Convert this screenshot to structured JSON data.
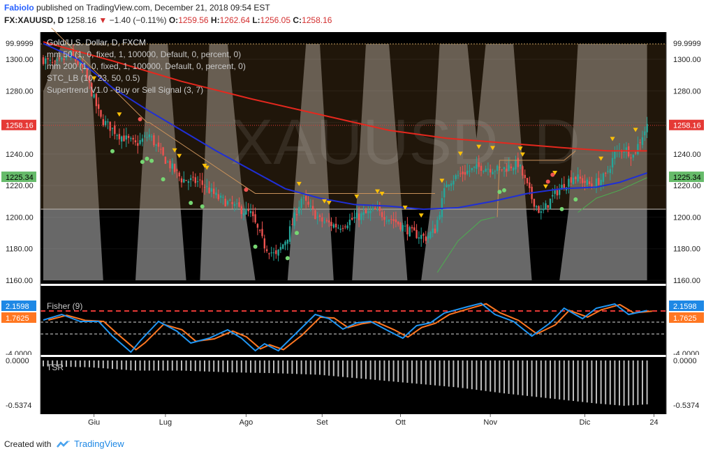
{
  "header": {
    "author": "FabioIo",
    "published_text": "published on TradingView.com, December 21, 2018 09:54 EST",
    "symbol": "FX:XAUUSD, D",
    "last": "1258.16",
    "change": "−1.40 (−0.11%)",
    "o_label": "O:",
    "o_value": "1259.56",
    "h_label": "H:",
    "h_value": "1262.64",
    "l_label": "L:",
    "l_value": "1256.05",
    "c_label": "C:",
    "c_value": "1258.16"
  },
  "legend": {
    "title": "Gold/U.S. Dollar, D, FXCM",
    "ma50": "mm 50 (1, 0, fixed, 1, 100000, Default, 0, percent, 0)",
    "ma200": "mm 200 (1, 0, fixed, 1, 100000, Default, 0, percent, 0)",
    "stc": "STC_LB (10, 23, 50, 0.5)",
    "supertrend": "Supertrend V1.0 - Buy or Sell Signal (3, 7)"
  },
  "watermark": "XAUUSD, D",
  "colors": {
    "background": "#000000",
    "up_candle": "#26a69a",
    "down_candle": "#ef5350",
    "ma50": "#1f2fd6",
    "ma200": "#e5281e",
    "stc_fill": "#7a7a7a",
    "supertrend_up": "#4caf50",
    "supertrend_down": "#c8915a",
    "fisher": "#2196f3",
    "fisher_trigger": "#ff7722",
    "tsr_bars": "#bdbdbd",
    "last_price_badge": "#e53935",
    "ma50_badge": "#66bb6a"
  },
  "chart_data": [
    {
      "type": "candlestick",
      "title": "Gold/U.S. Dollar, D, FXCM",
      "x_ticks": [
        "Giu",
        "Lug",
        "Ago",
        "Set",
        "Ott",
        "Nov",
        "Dic",
        "24"
      ],
      "y_ticks": [
        1300.0,
        1280.0,
        1260.0,
        1240.0,
        1220.0,
        1200.0,
        1180.0,
        1160.0
      ],
      "ylim": [
        1155,
        1310
      ],
      "last_price": 1258.16,
      "ma50_last": 1225.34,
      "stc_top_label": "99.9999",
      "close_path": [
        [
          0,
          1300
        ],
        [
          5,
          1296
        ],
        [
          12,
          1303
        ],
        [
          18,
          1292
        ],
        [
          25,
          1262
        ],
        [
          33,
          1252
        ],
        [
          40,
          1246
        ],
        [
          46,
          1252
        ],
        [
          52,
          1238
        ],
        [
          60,
          1224
        ],
        [
          68,
          1222
        ],
        [
          76,
          1212
        ],
        [
          84,
          1206
        ],
        [
          90,
          1202
        ],
        [
          96,
          1182
        ],
        [
          101,
          1175
        ],
        [
          106,
          1188
        ],
        [
          112,
          1212
        ],
        [
          120,
          1198
        ],
        [
          128,
          1194
        ],
        [
          136,
          1200
        ],
        [
          144,
          1204
        ],
        [
          152,
          1198
        ],
        [
          160,
          1190
        ],
        [
          166,
          1187
        ],
        [
          170,
          1192
        ],
        [
          175,
          1222
        ],
        [
          182,
          1228
        ],
        [
          190,
          1232
        ],
        [
          198,
          1230
        ],
        [
          206,
          1234
        ],
        [
          212,
          1212
        ],
        [
          216,
          1202
        ],
        [
          222,
          1215
        ],
        [
          230,
          1226
        ],
        [
          238,
          1220
        ],
        [
          244,
          1226
        ],
        [
          248,
          1240
        ],
        [
          252,
          1244
        ],
        [
          256,
          1239
        ],
        [
          260,
          1252
        ],
        [
          262,
          1258
        ]
      ],
      "ma50_path": [
        [
          0,
          1310
        ],
        [
          15,
          1300
        ],
        [
          30,
          1282
        ],
        [
          45,
          1268
        ],
        [
          60,
          1255
        ],
        [
          75,
          1242
        ],
        [
          90,
          1230
        ],
        [
          105,
          1218
        ],
        [
          120,
          1212
        ],
        [
          135,
          1208
        ],
        [
          150,
          1207
        ],
        [
          165,
          1205
        ],
        [
          180,
          1206
        ],
        [
          195,
          1210
        ],
        [
          210,
          1215
        ],
        [
          225,
          1218
        ],
        [
          240,
          1219
        ],
        [
          250,
          1222
        ],
        [
          262,
          1228
        ]
      ],
      "ma200_path": [
        [
          0,
          1311
        ],
        [
          30,
          1299
        ],
        [
          60,
          1286
        ],
        [
          90,
          1275
        ],
        [
          120,
          1265
        ],
        [
          150,
          1255
        ],
        [
          175,
          1250
        ],
        [
          200,
          1247
        ],
        [
          225,
          1244
        ],
        [
          245,
          1242
        ],
        [
          262,
          1242
        ]
      ],
      "supertrend_path": [
        [
          0,
          1325
        ],
        [
          45,
          1260
        ],
        [
          46,
          1260
        ],
        [
          92,
          1215
        ],
        [
          93,
          1215
        ],
        [
          170,
          1215
        ],
        [
          171,
          1165
        ],
        [
          180,
          1185
        ],
        [
          190,
          1198
        ],
        [
          196,
          1200
        ],
        [
          197,
          1200
        ],
        [
          198,
          1236
        ],
        [
          215,
          1236
        ],
        [
          216,
          1236
        ],
        [
          226,
          1236
        ],
        [
          231,
          1242
        ],
        [
          232,
          1203
        ],
        [
          240,
          1212
        ],
        [
          250,
          1217
        ],
        [
          262,
          1225
        ]
      ],
      "stc_path": [
        [
          0,
          80
        ],
        [
          8,
          100
        ],
        [
          20,
          100
        ],
        [
          26,
          0
        ],
        [
          35,
          0
        ],
        [
          40,
          0
        ],
        [
          46,
          100
        ],
        [
          54,
          100
        ],
        [
          62,
          0
        ],
        [
          68,
          0
        ],
        [
          72,
          100
        ],
        [
          80,
          100
        ],
        [
          86,
          40
        ],
        [
          92,
          0
        ],
        [
          100,
          0
        ],
        [
          106,
          0
        ],
        [
          114,
          100
        ],
        [
          120,
          100
        ],
        [
          126,
          0
        ],
        [
          134,
          0
        ],
        [
          140,
          100
        ],
        [
          150,
          100
        ],
        [
          158,
          0
        ],
        [
          164,
          0
        ],
        [
          168,
          30
        ],
        [
          172,
          100
        ],
        [
          184,
          100
        ],
        [
          188,
          60
        ],
        [
          192,
          100
        ],
        [
          204,
          100
        ],
        [
          212,
          0
        ],
        [
          218,
          0
        ],
        [
          224,
          0
        ],
        [
          228,
          30
        ],
        [
          232,
          100
        ],
        [
          240,
          100
        ],
        [
          250,
          100
        ],
        [
          262,
          100
        ]
      ]
    },
    {
      "type": "line",
      "title": "Fisher (9)",
      "y_ticks": [
        -4.0
      ],
      "last_fisher": 2.1598,
      "last_trigger": 1.7625,
      "top_label": "2.1598",
      "trigger_label": "1.7625",
      "bottom_label": "-4.0000",
      "path": [
        [
          0,
          0.8
        ],
        [
          8,
          1.6
        ],
        [
          16,
          0.6
        ],
        [
          24,
          0.6
        ],
        [
          30,
          -1.5
        ],
        [
          38,
          -3.8
        ],
        [
          42,
          -2.2
        ],
        [
          50,
          0.6
        ],
        [
          58,
          -0.8
        ],
        [
          64,
          -2.5
        ],
        [
          72,
          -1.8
        ],
        [
          80,
          -0.6
        ],
        [
          86,
          -1.8
        ],
        [
          92,
          -3.6
        ],
        [
          96,
          -2.6
        ],
        [
          102,
          -3.6
        ],
        [
          110,
          -1.0
        ],
        [
          118,
          1.6
        ],
        [
          124,
          1.0
        ],
        [
          130,
          -0.5
        ],
        [
          136,
          0.4
        ],
        [
          142,
          0.6
        ],
        [
          150,
          -0.8
        ],
        [
          156,
          -1.8
        ],
        [
          162,
          0.0
        ],
        [
          168,
          0.4
        ],
        [
          174,
          1.8
        ],
        [
          184,
          2.7
        ],
        [
          190,
          3.2
        ],
        [
          196,
          1.6
        ],
        [
          204,
          0.6
        ],
        [
          212,
          -1.5
        ],
        [
          220,
          0.4
        ],
        [
          226,
          2.5
        ],
        [
          234,
          1.0
        ],
        [
          240,
          2.5
        ],
        [
          248,
          3.1
        ],
        [
          254,
          1.6
        ],
        [
          262,
          2.16
        ]
      ]
    },
    {
      "type": "bar",
      "title": "TSR",
      "top_label": "0.0000",
      "bottom_label": "-0.5374",
      "min": -0.5374,
      "path": [
        [
          0,
          -0.07
        ],
        [
          20,
          -0.08
        ],
        [
          40,
          -0.12
        ],
        [
          60,
          -0.12
        ],
        [
          80,
          -0.14
        ],
        [
          100,
          -0.15
        ],
        [
          120,
          -0.17
        ],
        [
          140,
          -0.22
        ],
        [
          160,
          -0.27
        ],
        [
          180,
          -0.32
        ],
        [
          200,
          -0.39
        ],
        [
          220,
          -0.45
        ],
        [
          240,
          -0.51
        ],
        [
          252,
          -0.537
        ],
        [
          262,
          -0.52
        ]
      ]
    }
  ],
  "footer": {
    "created_with": "Created with",
    "brand": "TradingView"
  }
}
